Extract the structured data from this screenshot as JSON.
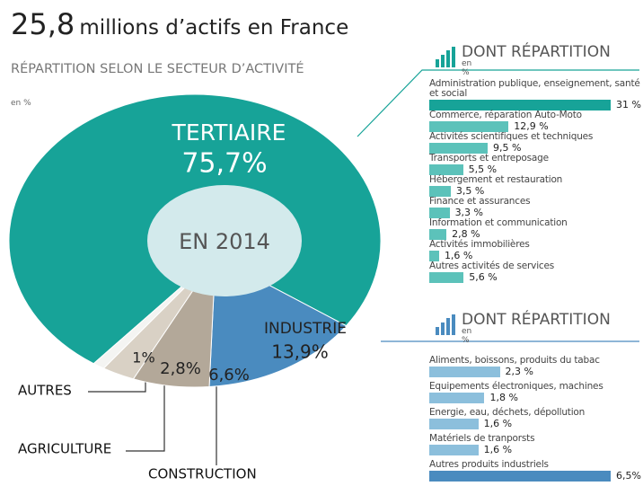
{
  "header": {
    "title_number": "25,8",
    "title": "millions d’actifs en France"
  },
  "chart_data": [
    {
      "type": "pie",
      "title": "RÉPARTITION SELON LE SECTEUR D’ACTIVITÉ",
      "unit": "en %",
      "center_label": "EN 2014",
      "categories": [
        "TERTIAIRE",
        "INDUSTRIE",
        "CONSTRUCTION",
        "AGRICULTURE",
        "AUTRES"
      ],
      "values": [
        75.7,
        13.9,
        6.6,
        2.8,
        1
      ],
      "value_labels": [
        "75,7%",
        "13,9%",
        "6,6%",
        "2,8%",
        "1%"
      ],
      "colors": [
        "#17a398",
        "#4a8bbf",
        "#b3a899",
        "#d9d1c5",
        "#f4f4f2"
      ]
    },
    {
      "type": "bar",
      "orientation": "horizontal",
      "title": "DONT RÉPARTITION",
      "unit": "en %",
      "categories": [
        "Administration publique, enseignement, santé et social",
        "Commerce, réparation Auto-Moto",
        "Activités scientifiques et techniques",
        "Transports et entreposage",
        "Hébergement et restauration",
        "Finance et assurances",
        "Information et communication",
        "Activités immobilières",
        "Autres activités de services"
      ],
      "values": [
        31,
        12.9,
        9.5,
        5.5,
        3.5,
        3.3,
        2.8,
        1.6,
        5.6
      ],
      "value_labels": [
        "31 %",
        "12,9 %",
        "9,5 %",
        "5,5 %",
        "3,5 %",
        "3,3 %",
        "2,8 %",
        "1,6 %",
        "5,6 %"
      ],
      "xlim": [
        0,
        31
      ],
      "colors": [
        "#17a398",
        "#5cc2ba",
        "#5cc2ba",
        "#5cc2ba",
        "#5cc2ba",
        "#5cc2ba",
        "#5cc2ba",
        "#5cc2ba",
        "#5cc2ba"
      ]
    },
    {
      "type": "bar",
      "orientation": "horizontal",
      "title": "DONT RÉPARTITION",
      "unit": "en %",
      "categories": [
        "Aliments, boissons, produits du tabac",
        "Equipements électroniques, machines",
        "Energie, eau, déchets, dépollution",
        "Matériels de tranporsts",
        "Autres produits industriels"
      ],
      "values": [
        2.3,
        1.8,
        1.6,
        1.6,
        6.5
      ],
      "value_labels": [
        "2,3 %",
        "1,8 %",
        "1,6 %",
        "1,6 %",
        "6,5%"
      ],
      "xlim": [
        0,
        6.5
      ],
      "colors": [
        "#8cbfdc",
        "#8cbfdc",
        "#8cbfdc",
        "#8cbfdc",
        "#4a8bbf"
      ]
    }
  ]
}
